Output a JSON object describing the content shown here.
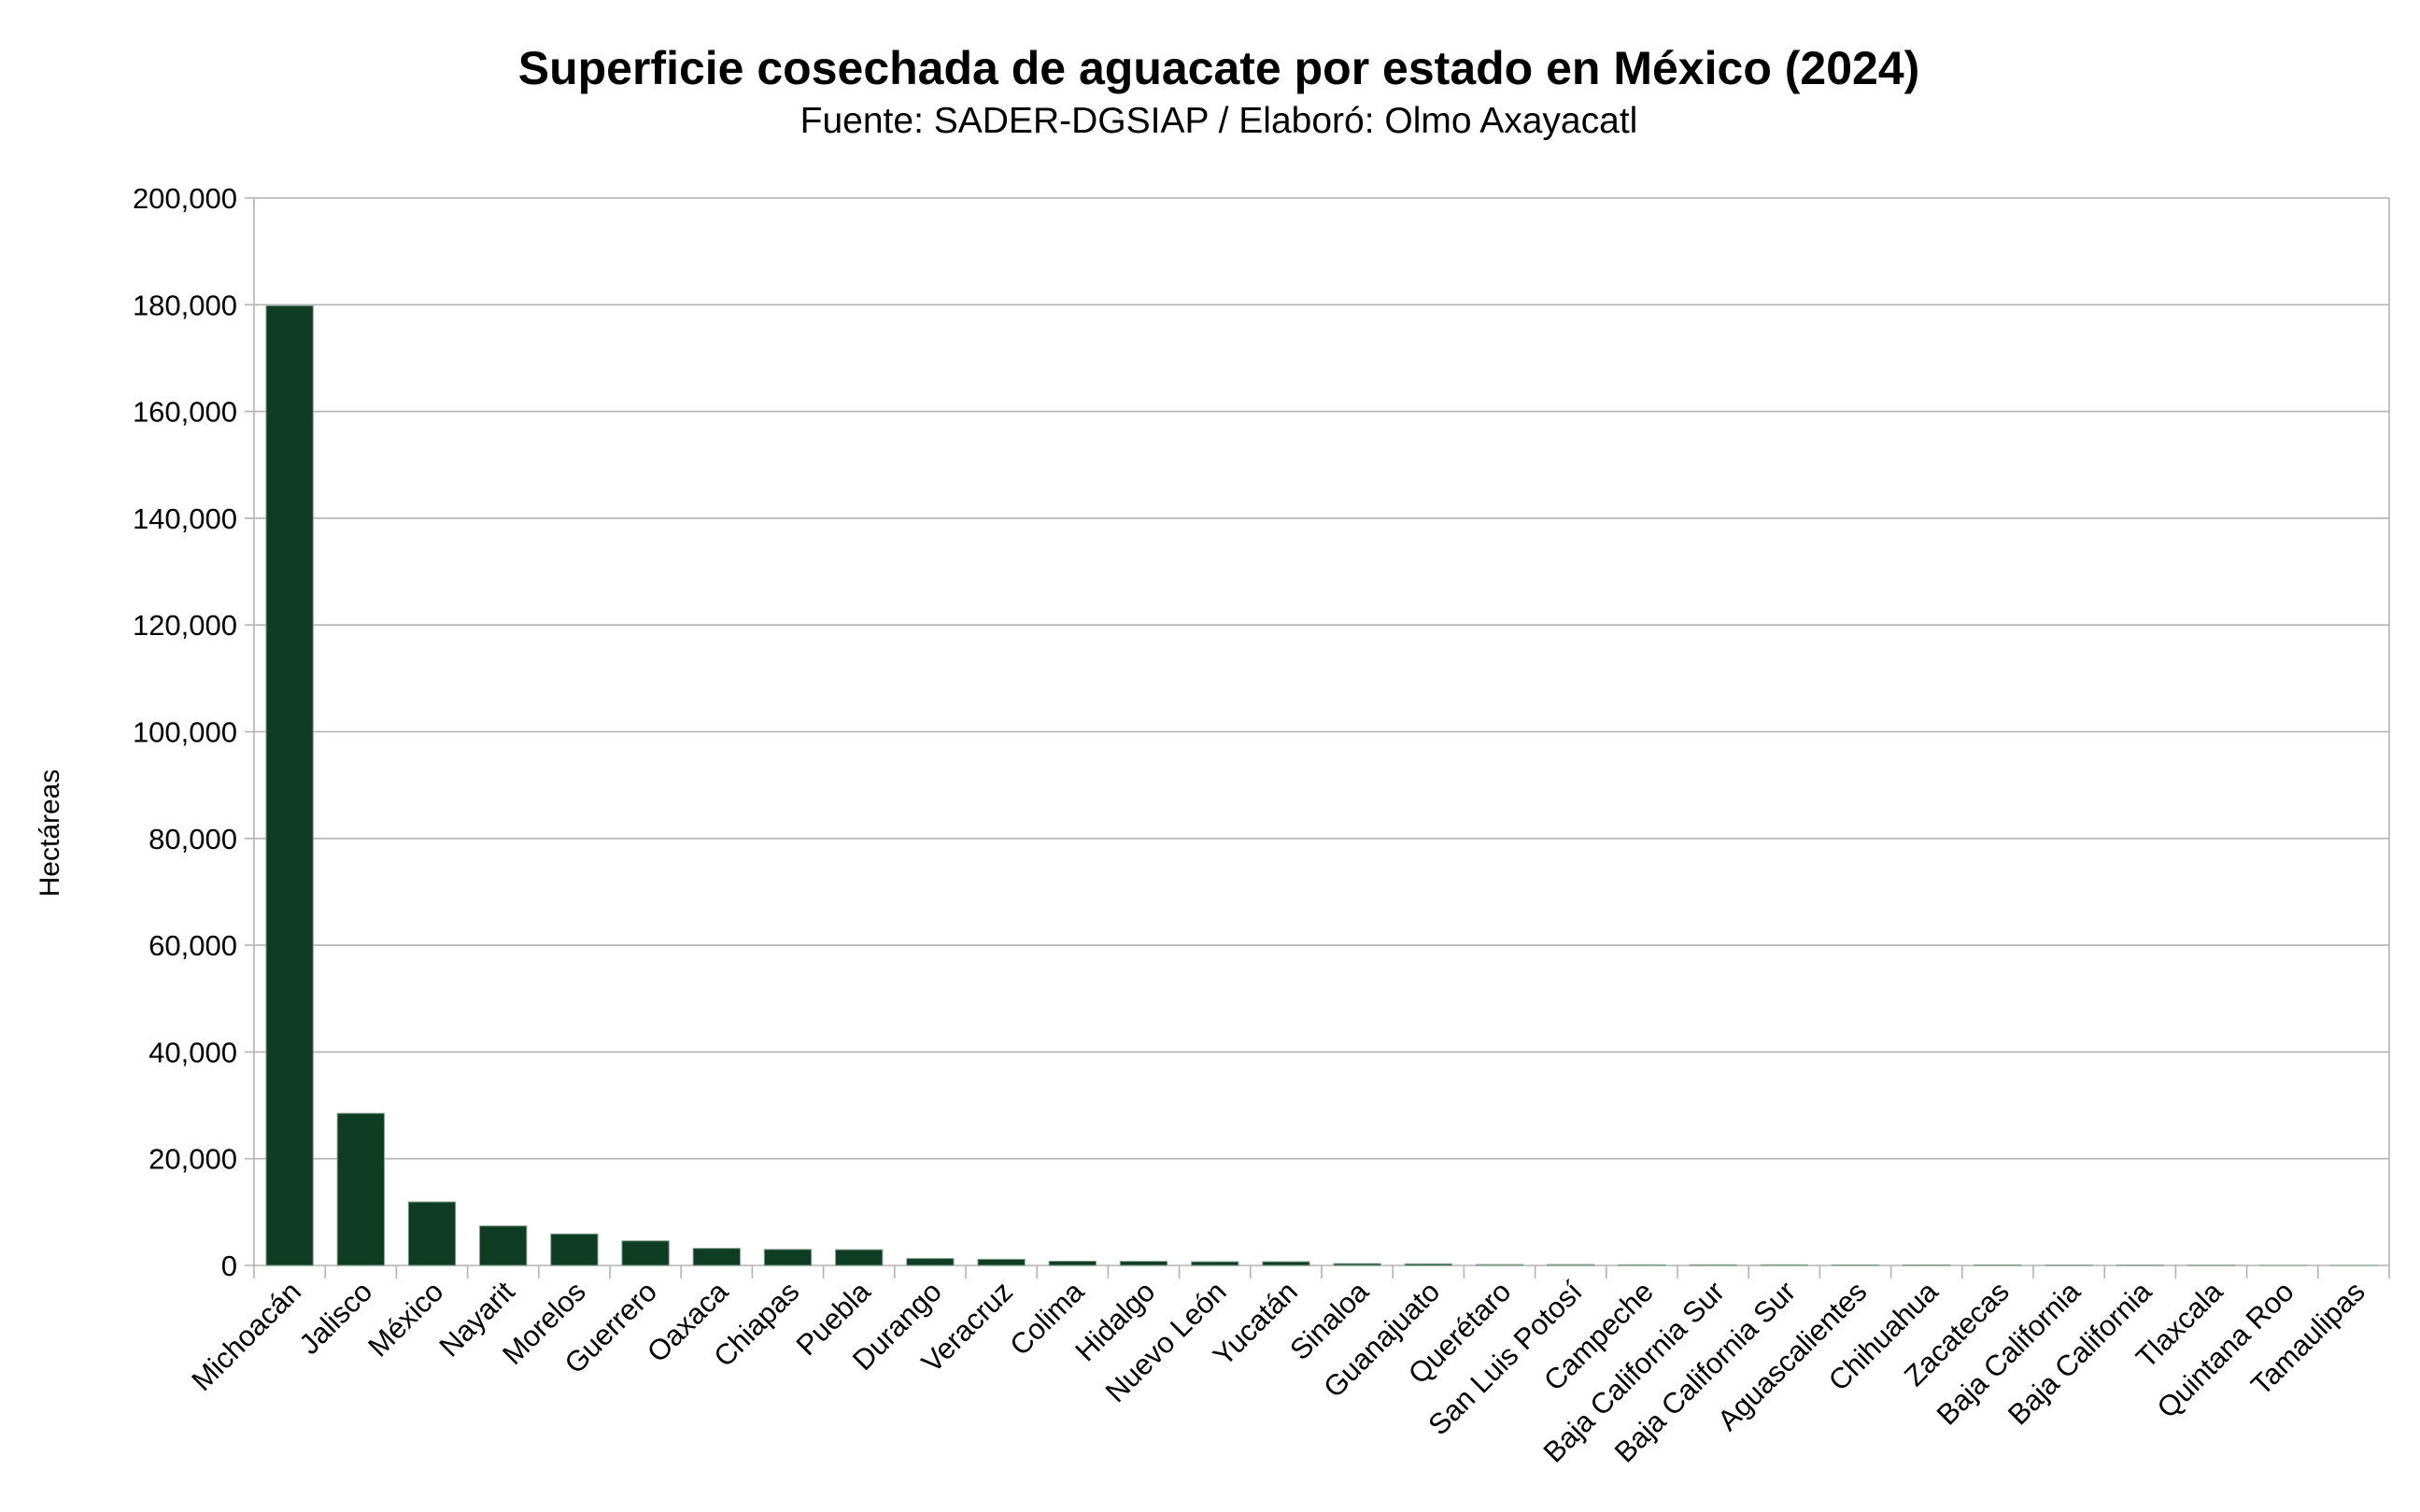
{
  "chart_data": {
    "type": "bar",
    "title": "Superficie cosechada de aguacate por estado en México (2024)",
    "subtitle": "Fuente: SADER-DGSIAP / Elaboró: Olmo Axayacatl",
    "xlabel": "",
    "ylabel": "Hectáreas",
    "ylim": [
      0,
      200000
    ],
    "yticks": [
      0,
      20000,
      40000,
      60000,
      80000,
      100000,
      120000,
      140000,
      160000,
      180000,
      200000
    ],
    "ytick_labels": [
      "0",
      "20,000",
      "40,000",
      "60,000",
      "80,000",
      "100,000",
      "120,000",
      "140,000",
      "160,000",
      "180,000",
      "200,000"
    ],
    "grid": true,
    "bar_color": "#0f3d24",
    "categories": [
      "Michoacán",
      "Jalisco",
      "México",
      "Nayarit",
      "Morelos",
      "Guerrero",
      "Oaxaca",
      "Chiapas",
      "Puebla",
      "Durango",
      "Veracruz",
      "Colima",
      "Hidalgo",
      "Nuevo León",
      "Yucatán",
      "Sinaloa",
      "Guanajuato",
      "Querétaro",
      "San Luis Potosí",
      "Campeche",
      "Baja California Sur",
      "Baja California Sur",
      "Aguascalientes",
      "Chihuahua",
      "Zacatecas",
      "Baja California",
      "Baja California",
      "Tlaxcala",
      "Quintana Roo",
      "Tamaulipas"
    ],
    "values": [
      179800,
      28500,
      11900,
      7400,
      5900,
      4600,
      3200,
      3000,
      2950,
      1300,
      1150,
      800,
      770,
      700,
      700,
      350,
      300,
      170,
      170,
      120,
      120,
      120,
      100,
      100,
      100,
      60,
      60,
      50,
      10,
      10
    ]
  }
}
